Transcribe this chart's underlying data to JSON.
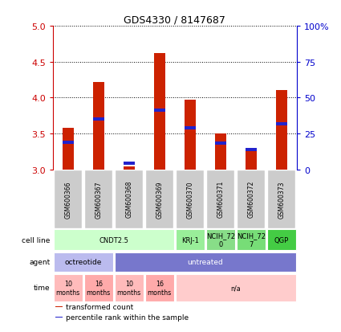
{
  "title": "GDS4330 / 8147687",
  "samples": [
    "GSM600366",
    "GSM600367",
    "GSM600368",
    "GSM600369",
    "GSM600370",
    "GSM600371",
    "GSM600372",
    "GSM600373"
  ],
  "bar_values": [
    3.58,
    4.22,
    3.04,
    4.62,
    3.97,
    3.5,
    3.25,
    4.1
  ],
  "percentile_values": [
    3.38,
    3.7,
    3.08,
    3.83,
    3.58,
    3.36,
    3.28,
    3.63
  ],
  "bar_bottom": 3.0,
  "ylim": [
    3.0,
    5.0
  ],
  "yticks_left": [
    3.0,
    3.5,
    4.0,
    4.5,
    5.0
  ],
  "yticks_right": [
    0,
    25,
    50,
    75,
    100
  ],
  "left_color": "#cc0000",
  "right_color": "#0000cc",
  "bar_color": "#cc2200",
  "percentile_color": "#2222cc",
  "bg_color": "#ffffff",
  "sample_box_color": "#cccccc",
  "cell_line_row": {
    "label": "cell line",
    "groups": [
      {
        "text": "CNDT2.5",
        "span": [
          0,
          3
        ],
        "color": "#ccffcc"
      },
      {
        "text": "KRJ-1",
        "span": [
          4,
          4
        ],
        "color": "#99ee99"
      },
      {
        "text": "NCIH_72\n0",
        "span": [
          5,
          5
        ],
        "color": "#88dd88"
      },
      {
        "text": "NCIH_72\n7",
        "span": [
          6,
          6
        ],
        "color": "#77dd77"
      },
      {
        "text": "QGP",
        "span": [
          7,
          7
        ],
        "color": "#44cc44"
      }
    ]
  },
  "agent_row": {
    "label": "agent",
    "groups": [
      {
        "text": "octreotide",
        "span": [
          0,
          1
        ],
        "color": "#bbbbee"
      },
      {
        "text": "untreated",
        "span": [
          2,
          7
        ],
        "color": "#7777cc"
      }
    ]
  },
  "time_row": {
    "label": "time",
    "groups": [
      {
        "text": "10\nmonths",
        "span": [
          0,
          0
        ],
        "color": "#ffbbbb"
      },
      {
        "text": "16\nmonths",
        "span": [
          1,
          1
        ],
        "color": "#ffaaaa"
      },
      {
        "text": "10\nmonths",
        "span": [
          2,
          2
        ],
        "color": "#ffbbbb"
      },
      {
        "text": "16\nmonths",
        "span": [
          3,
          3
        ],
        "color": "#ffaaaa"
      },
      {
        "text": "n/a",
        "span": [
          4,
          7
        ],
        "color": "#ffcccc"
      }
    ]
  },
  "legend_items": [
    {
      "color": "#cc2200",
      "label": "transformed count"
    },
    {
      "color": "#2222cc",
      "label": "percentile rank within the sample"
    }
  ]
}
